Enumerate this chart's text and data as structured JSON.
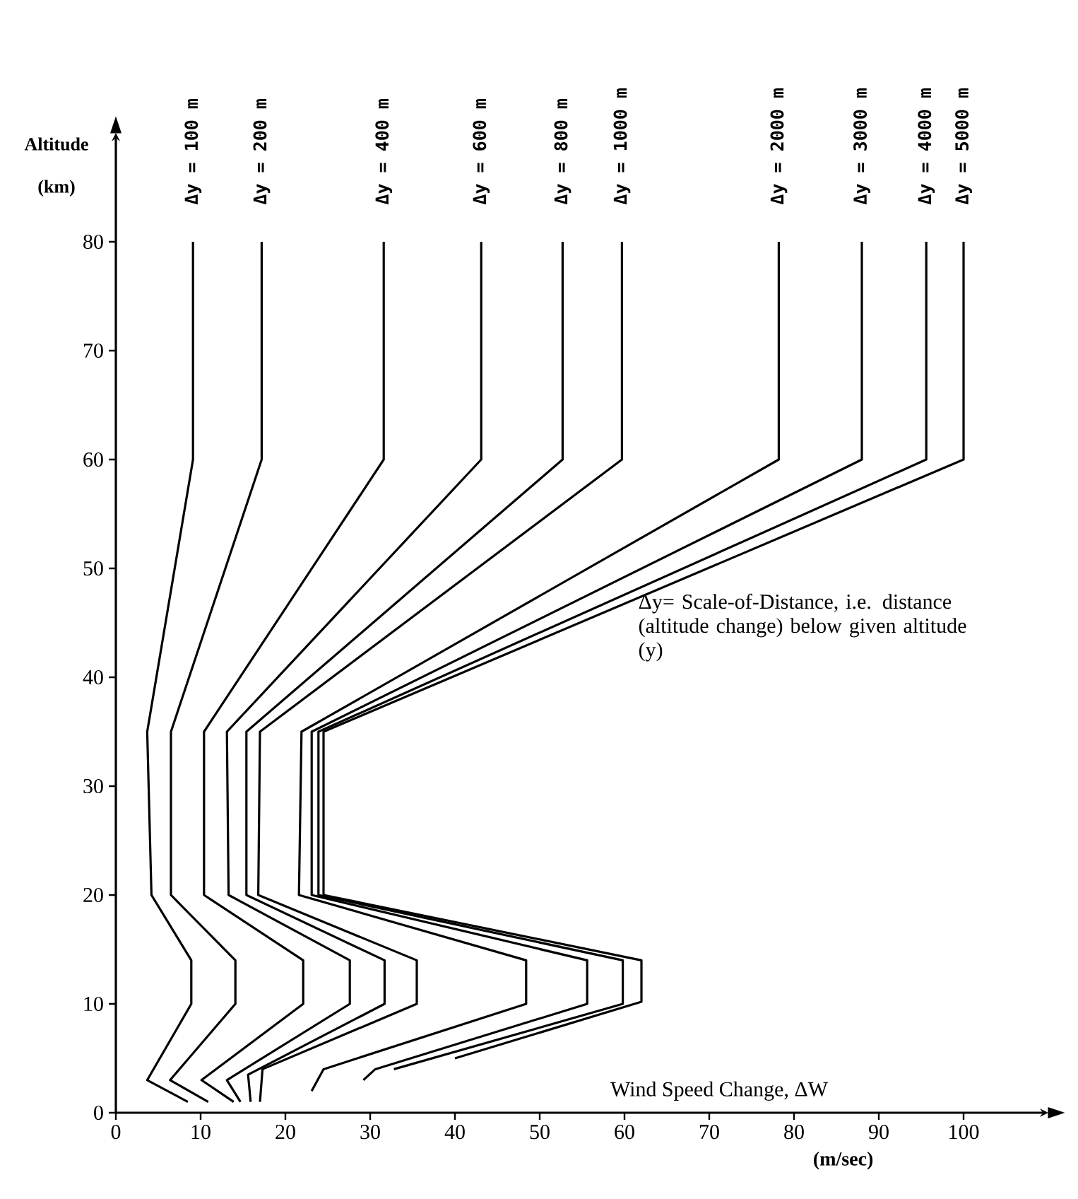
{
  "chart_data": {
    "type": "line",
    "xlabel": "(m/sec)",
    "ylabel": "Altitude (km)",
    "xlim": [
      0,
      110
    ],
    "ylim": [
      0,
      90
    ],
    "xticks": [
      0,
      10,
      20,
      30,
      40,
      50,
      60,
      70,
      80,
      90,
      100
    ],
    "yticks": [
      0,
      10,
      20,
      30,
      40,
      50,
      60,
      70,
      80
    ],
    "annotations": [
      "Δy= Scale-of-Distance, i.e. distance (altitude change) below given altitude (y)",
      "Wind Speed Change, ΔW"
    ],
    "series": [
      {
        "name": "Δy = 100 m",
        "color": "#000000",
        "x": [
          8.5,
          3.7,
          8.9,
          8.9,
          4.2,
          3.7,
          9.1,
          9.1
        ],
        "values": [
          1,
          3,
          10,
          14,
          20,
          35,
          60,
          80
        ]
      },
      {
        "name": "Δy = 200 m",
        "color": "#000000",
        "x": [
          10.9,
          6.4,
          14.1,
          14.1,
          6.5,
          6.5,
          17.2,
          17.2
        ],
        "values": [
          1,
          3,
          10,
          14,
          20,
          35,
          60,
          80
        ]
      },
      {
        "name": "Δy = 400 m",
        "color": "#000000",
        "x": [
          13.9,
          10.1,
          22.1,
          22.1,
          10.4,
          10.4,
          31.6,
          31.6
        ],
        "values": [
          1,
          3,
          10,
          14,
          20,
          35,
          60,
          80
        ]
      },
      {
        "name": "Δy = 600 m",
        "color": "#000000",
        "x": [
          14.7,
          13.1,
          27.6,
          27.6,
          13.3,
          13.1,
          43.1,
          43.1
        ],
        "values": [
          1,
          3,
          10,
          14,
          20,
          35,
          60,
          80
        ]
      },
      {
        "name": "Δy = 800 m",
        "color": "#000000",
        "x": [
          15.9,
          15.6,
          31.7,
          31.7,
          15.4,
          15.4,
          52.7,
          52.7
        ],
        "values": [
          1,
          3.5,
          10,
          14,
          20,
          35,
          60,
          80
        ]
      },
      {
        "name": "Δy = 1000 m",
        "color": "#000000",
        "x": [
          17,
          17.3,
          35.5,
          35.5,
          16.8,
          17,
          59.7,
          59.7
        ],
        "values": [
          1,
          4,
          10,
          14,
          20,
          35,
          60,
          80
        ]
      },
      {
        "name": "Δy = 2000 m",
        "color": "#000000",
        "x": [
          23.1,
          24.5,
          48.4,
          48.4,
          21.6,
          21.9,
          78.2,
          78.2
        ],
        "values": [
          2,
          4,
          10,
          14,
          20,
          35,
          60,
          80
        ]
      },
      {
        "name": "Δy = 3000 m",
        "color": "#000000",
        "x": [
          29.2,
          30.6,
          55.6,
          55.6,
          23.1,
          23.1,
          88,
          88
        ],
        "values": [
          3,
          4,
          10,
          14,
          20,
          35,
          60,
          80
        ]
      },
      {
        "name": "Δy = 4000 m",
        "color": "#000000",
        "x": [
          32.8,
          59.8,
          59.8,
          23.9,
          23.9,
          95.6,
          95.6
        ],
        "values": [
          4,
          10,
          14,
          20,
          35,
          60,
          80
        ]
      },
      {
        "name": "Δy = 5000 m",
        "color": "#000000",
        "x": [
          40,
          62,
          62,
          24.5,
          24.5,
          100,
          100
        ],
        "values": [
          5,
          10.2,
          14,
          20,
          35,
          60,
          80
        ]
      }
    ]
  }
}
